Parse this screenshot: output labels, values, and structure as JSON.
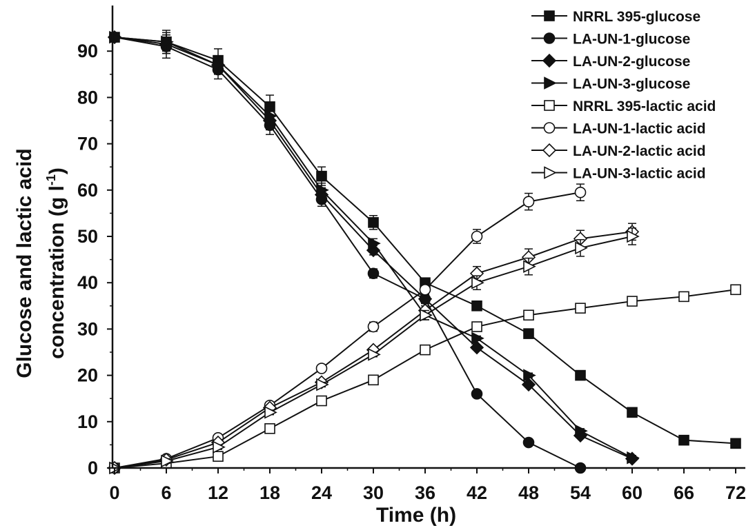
{
  "chart_data": {
    "type": "line",
    "title": "",
    "xlabel": "Time (h)",
    "ylabel_line1": "Glucose and lactic acid",
    "ylabel_line2_main": "concentration (g l",
    "ylabel_sup": "-1",
    "ylabel_close": ")",
    "xlim": [
      0,
      73
    ],
    "ylim": [
      0,
      95
    ],
    "xticks": [
      0,
      6,
      12,
      18,
      24,
      30,
      36,
      42,
      48,
      54,
      60,
      66,
      72
    ],
    "yticks": [
      0,
      10,
      20,
      30,
      40,
      50,
      60,
      70,
      80,
      90
    ],
    "grid": false,
    "legend_position": "top-right",
    "series": [
      {
        "name": "NRRL 395-glucose",
        "marker": "square",
        "filled": true,
        "x": [
          0,
          6,
          12,
          18,
          24,
          30,
          36,
          42,
          48,
          54,
          60,
          66,
          72
        ],
        "y": [
          93,
          92,
          88,
          78,
          63,
          53,
          40,
          35,
          29,
          20,
          12,
          6,
          5.3
        ],
        "err": [
          0.5,
          2.5,
          2.5,
          2.5,
          2,
          1.5,
          1,
          0.5,
          0.5,
          0.5,
          0.5,
          0.5,
          0.5
        ]
      },
      {
        "name": "LA-UN-1-glucose",
        "marker": "circle",
        "filled": true,
        "x": [
          0,
          6,
          12,
          18,
          24,
          30,
          36,
          42,
          48,
          54
        ],
        "y": [
          93,
          91,
          86,
          74,
          58,
          42,
          36.5,
          16,
          5.5,
          0
        ],
        "err": [
          0.5,
          2.5,
          2,
          2,
          1.5,
          1,
          1,
          0.5,
          0.5,
          0.3
        ]
      },
      {
        "name": "LA-UN-2-glucose",
        "marker": "diamond",
        "filled": true,
        "x": [
          0,
          6,
          12,
          18,
          24,
          30,
          36,
          42,
          48,
          54,
          60
        ],
        "y": [
          93,
          91.5,
          87,
          75,
          59,
          47,
          36.5,
          26,
          18,
          7,
          2
        ],
        "err": [
          0.5,
          2,
          2,
          2,
          1.5,
          1,
          1,
          0.5,
          0.5,
          0.5,
          0.5
        ]
      },
      {
        "name": "LA-UN-3-glucose",
        "marker": "triangle-right",
        "filled": true,
        "x": [
          0,
          6,
          12,
          18,
          24,
          30,
          36,
          42,
          48,
          54,
          60
        ],
        "y": [
          93,
          92,
          87,
          76,
          60,
          48.5,
          33,
          28,
          20,
          8,
          2.2
        ],
        "err": [
          0.5,
          2,
          2,
          2,
          1.5,
          1,
          1,
          0.5,
          0.5,
          0.5,
          0.5
        ]
      },
      {
        "name": "NRRL 395-lactic acid",
        "marker": "square",
        "filled": false,
        "x": [
          0,
          6,
          12,
          18,
          24,
          30,
          36,
          42,
          48,
          54,
          60,
          66,
          72
        ],
        "y": [
          0,
          1,
          2.5,
          8.5,
          14.5,
          19,
          25.5,
          30.5,
          33,
          34.5,
          36,
          37,
          38.5
        ],
        "err": [
          0.2,
          0.5,
          0.5,
          0.5,
          0.5,
          0.5,
          0.5,
          0.5,
          0.5,
          0.5,
          0.5,
          0.5,
          0.5
        ]
      },
      {
        "name": "LA-UN-1-lactic acid",
        "marker": "circle",
        "filled": false,
        "x": [
          0,
          6,
          12,
          18,
          24,
          30,
          36,
          42,
          48,
          54
        ],
        "y": [
          0,
          2,
          6.5,
          13.5,
          21.5,
          30.5,
          38.5,
          50,
          57.5,
          59.5
        ],
        "err": [
          0.2,
          0.5,
          0.5,
          0.5,
          0.5,
          1,
          1,
          1.5,
          1.8,
          1.8
        ]
      },
      {
        "name": "LA-UN-2-lactic acid",
        "marker": "diamond",
        "filled": false,
        "x": [
          0,
          6,
          12,
          18,
          24,
          30,
          36,
          42,
          48,
          54,
          60
        ],
        "y": [
          0,
          1.8,
          5.5,
          13,
          18.5,
          25.5,
          34,
          42,
          45.5,
          49.5,
          51
        ],
        "err": [
          0.2,
          0.5,
          0.5,
          0.5,
          0.5,
          0.5,
          1,
          1.5,
          1.8,
          1.8,
          1.8
        ]
      },
      {
        "name": "LA-UN-3-lactic acid",
        "marker": "triangle-right",
        "filled": false,
        "x": [
          0,
          6,
          12,
          18,
          24,
          30,
          36,
          42,
          48,
          54,
          60
        ],
        "y": [
          0,
          1.5,
          4.5,
          12,
          18,
          24.5,
          33,
          40,
          43.5,
          47.5,
          50
        ],
        "err": [
          0.2,
          0.5,
          0.5,
          0.5,
          0.5,
          0.5,
          1,
          1.5,
          1.8,
          1.8,
          1.8
        ]
      }
    ]
  }
}
